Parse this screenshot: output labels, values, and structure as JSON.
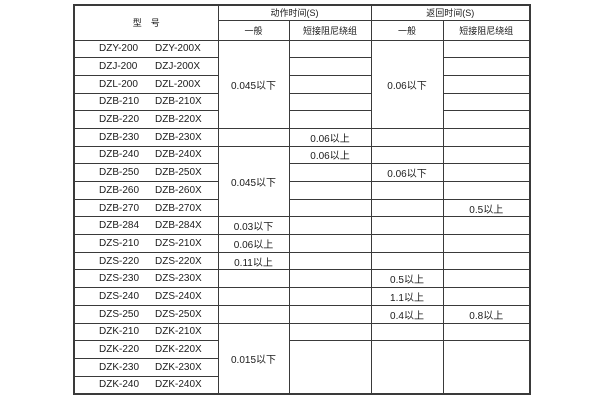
{
  "header": {
    "model": "型　号",
    "action_time": "动作时间(S)",
    "return_time": "返回时间(S)",
    "subheaders": [
      "一般",
      "短接阻尼绕组",
      "一般",
      "短接阻尼绕组"
    ]
  },
  "rows": [
    {
      "model": "DZY-200",
      "model_x": "DZY-200X",
      "cells": [
        {
          "text": "0.045以下",
          "rowspan": 5
        },
        {
          "text": ""
        },
        {
          "text": "0.06以下",
          "rowspan": 5
        },
        {
          "text": ""
        }
      ]
    },
    {
      "model": "DZJ-200",
      "model_x": "DZJ-200X",
      "cells": [
        {
          "text": ""
        },
        {
          "text": ""
        }
      ]
    },
    {
      "model": "DZL-200",
      "model_x": "DZL-200X",
      "cells": [
        {
          "text": ""
        },
        {
          "text": ""
        }
      ]
    },
    {
      "model": "DZB-210",
      "model_x": "DZB-210X",
      "cells": [
        {
          "text": ""
        },
        {
          "text": ""
        }
      ]
    },
    {
      "model": "DZB-220",
      "model_x": "DZB-220X",
      "cells": [
        {
          "text": ""
        },
        {
          "text": ""
        }
      ]
    },
    {
      "model": "DZB-230",
      "model_x": "DZB-230X",
      "cells": [
        {
          "text": ""
        },
        {
          "text": "0.06以上"
        },
        {
          "text": ""
        },
        {
          "text": ""
        }
      ]
    },
    {
      "model": "DZB-240",
      "model_x": "DZB-240X",
      "cells": [
        {
          "text": "0.045以下",
          "rowspan": 4
        },
        {
          "text": "0.06以上"
        },
        {
          "text": ""
        },
        {
          "text": ""
        }
      ]
    },
    {
      "model": "DZB-250",
      "model_x": "DZB-250X",
      "cells": [
        {
          "text": ""
        },
        {
          "text": "0.06以下"
        },
        {
          "text": ""
        }
      ]
    },
    {
      "model": "DZB-260",
      "model_x": "DZB-260X",
      "cells": [
        {
          "text": ""
        },
        {
          "text": ""
        },
        {
          "text": ""
        }
      ]
    },
    {
      "model": "DZB-270",
      "model_x": "DZB-270X",
      "cells": [
        {
          "text": ""
        },
        {
          "text": ""
        },
        {
          "text": "0.5以上"
        }
      ]
    },
    {
      "model": "DZB-284",
      "model_x": "DZB-284X",
      "cells": [
        {
          "text": "0.03以下"
        },
        {
          "text": ""
        },
        {
          "text": ""
        },
        {
          "text": ""
        }
      ]
    },
    {
      "model": "DZS-210",
      "model_x": "DZS-210X",
      "cells": [
        {
          "text": "0.06以上"
        },
        {
          "text": ""
        },
        {
          "text": ""
        },
        {
          "text": ""
        }
      ]
    },
    {
      "model": "DZS-220",
      "model_x": "DZS-220X",
      "cells": [
        {
          "text": "0.11以上"
        },
        {
          "text": ""
        },
        {
          "text": ""
        },
        {
          "text": ""
        }
      ]
    },
    {
      "model": "DZS-230",
      "model_x": "DZS-230X",
      "cells": [
        {
          "text": ""
        },
        {
          "text": ""
        },
        {
          "text": "0.5以上"
        },
        {
          "text": ""
        }
      ]
    },
    {
      "model": "DZS-240",
      "model_x": "DZS-240X",
      "cells": [
        {
          "text": ""
        },
        {
          "text": ""
        },
        {
          "text": "1.1以上"
        },
        {
          "text": ""
        }
      ]
    },
    {
      "model": "DZS-250",
      "model_x": "DZS-250X",
      "cells": [
        {
          "text": ""
        },
        {
          "text": ""
        },
        {
          "text": "0.4以上"
        },
        {
          "text": "0.8以上"
        }
      ]
    },
    {
      "model": "DZK-210",
      "model_x": "DZK-210X",
      "cells": [
        {
          "text": "0.015以下",
          "rowspan": 4
        },
        {
          "text": ""
        },
        {
          "text": ""
        },
        {
          "text": ""
        }
      ]
    },
    {
      "model": "DZK-220",
      "model_x": "DZK-220X",
      "cells": [
        {
          "text": "",
          "rowspan": 3
        },
        {
          "text": "",
          "rowspan": 3
        },
        {
          "text": "",
          "rowspan": 3
        }
      ]
    },
    {
      "model": "DZK-230",
      "model_x": "DZK-230X",
      "cells": []
    },
    {
      "model": "DZK-240",
      "model_x": "DZK-240X",
      "cells": []
    }
  ],
  "colors": {
    "background": "#ffffff",
    "border": "#3a3a3a",
    "text": "#1a1a1a"
  }
}
